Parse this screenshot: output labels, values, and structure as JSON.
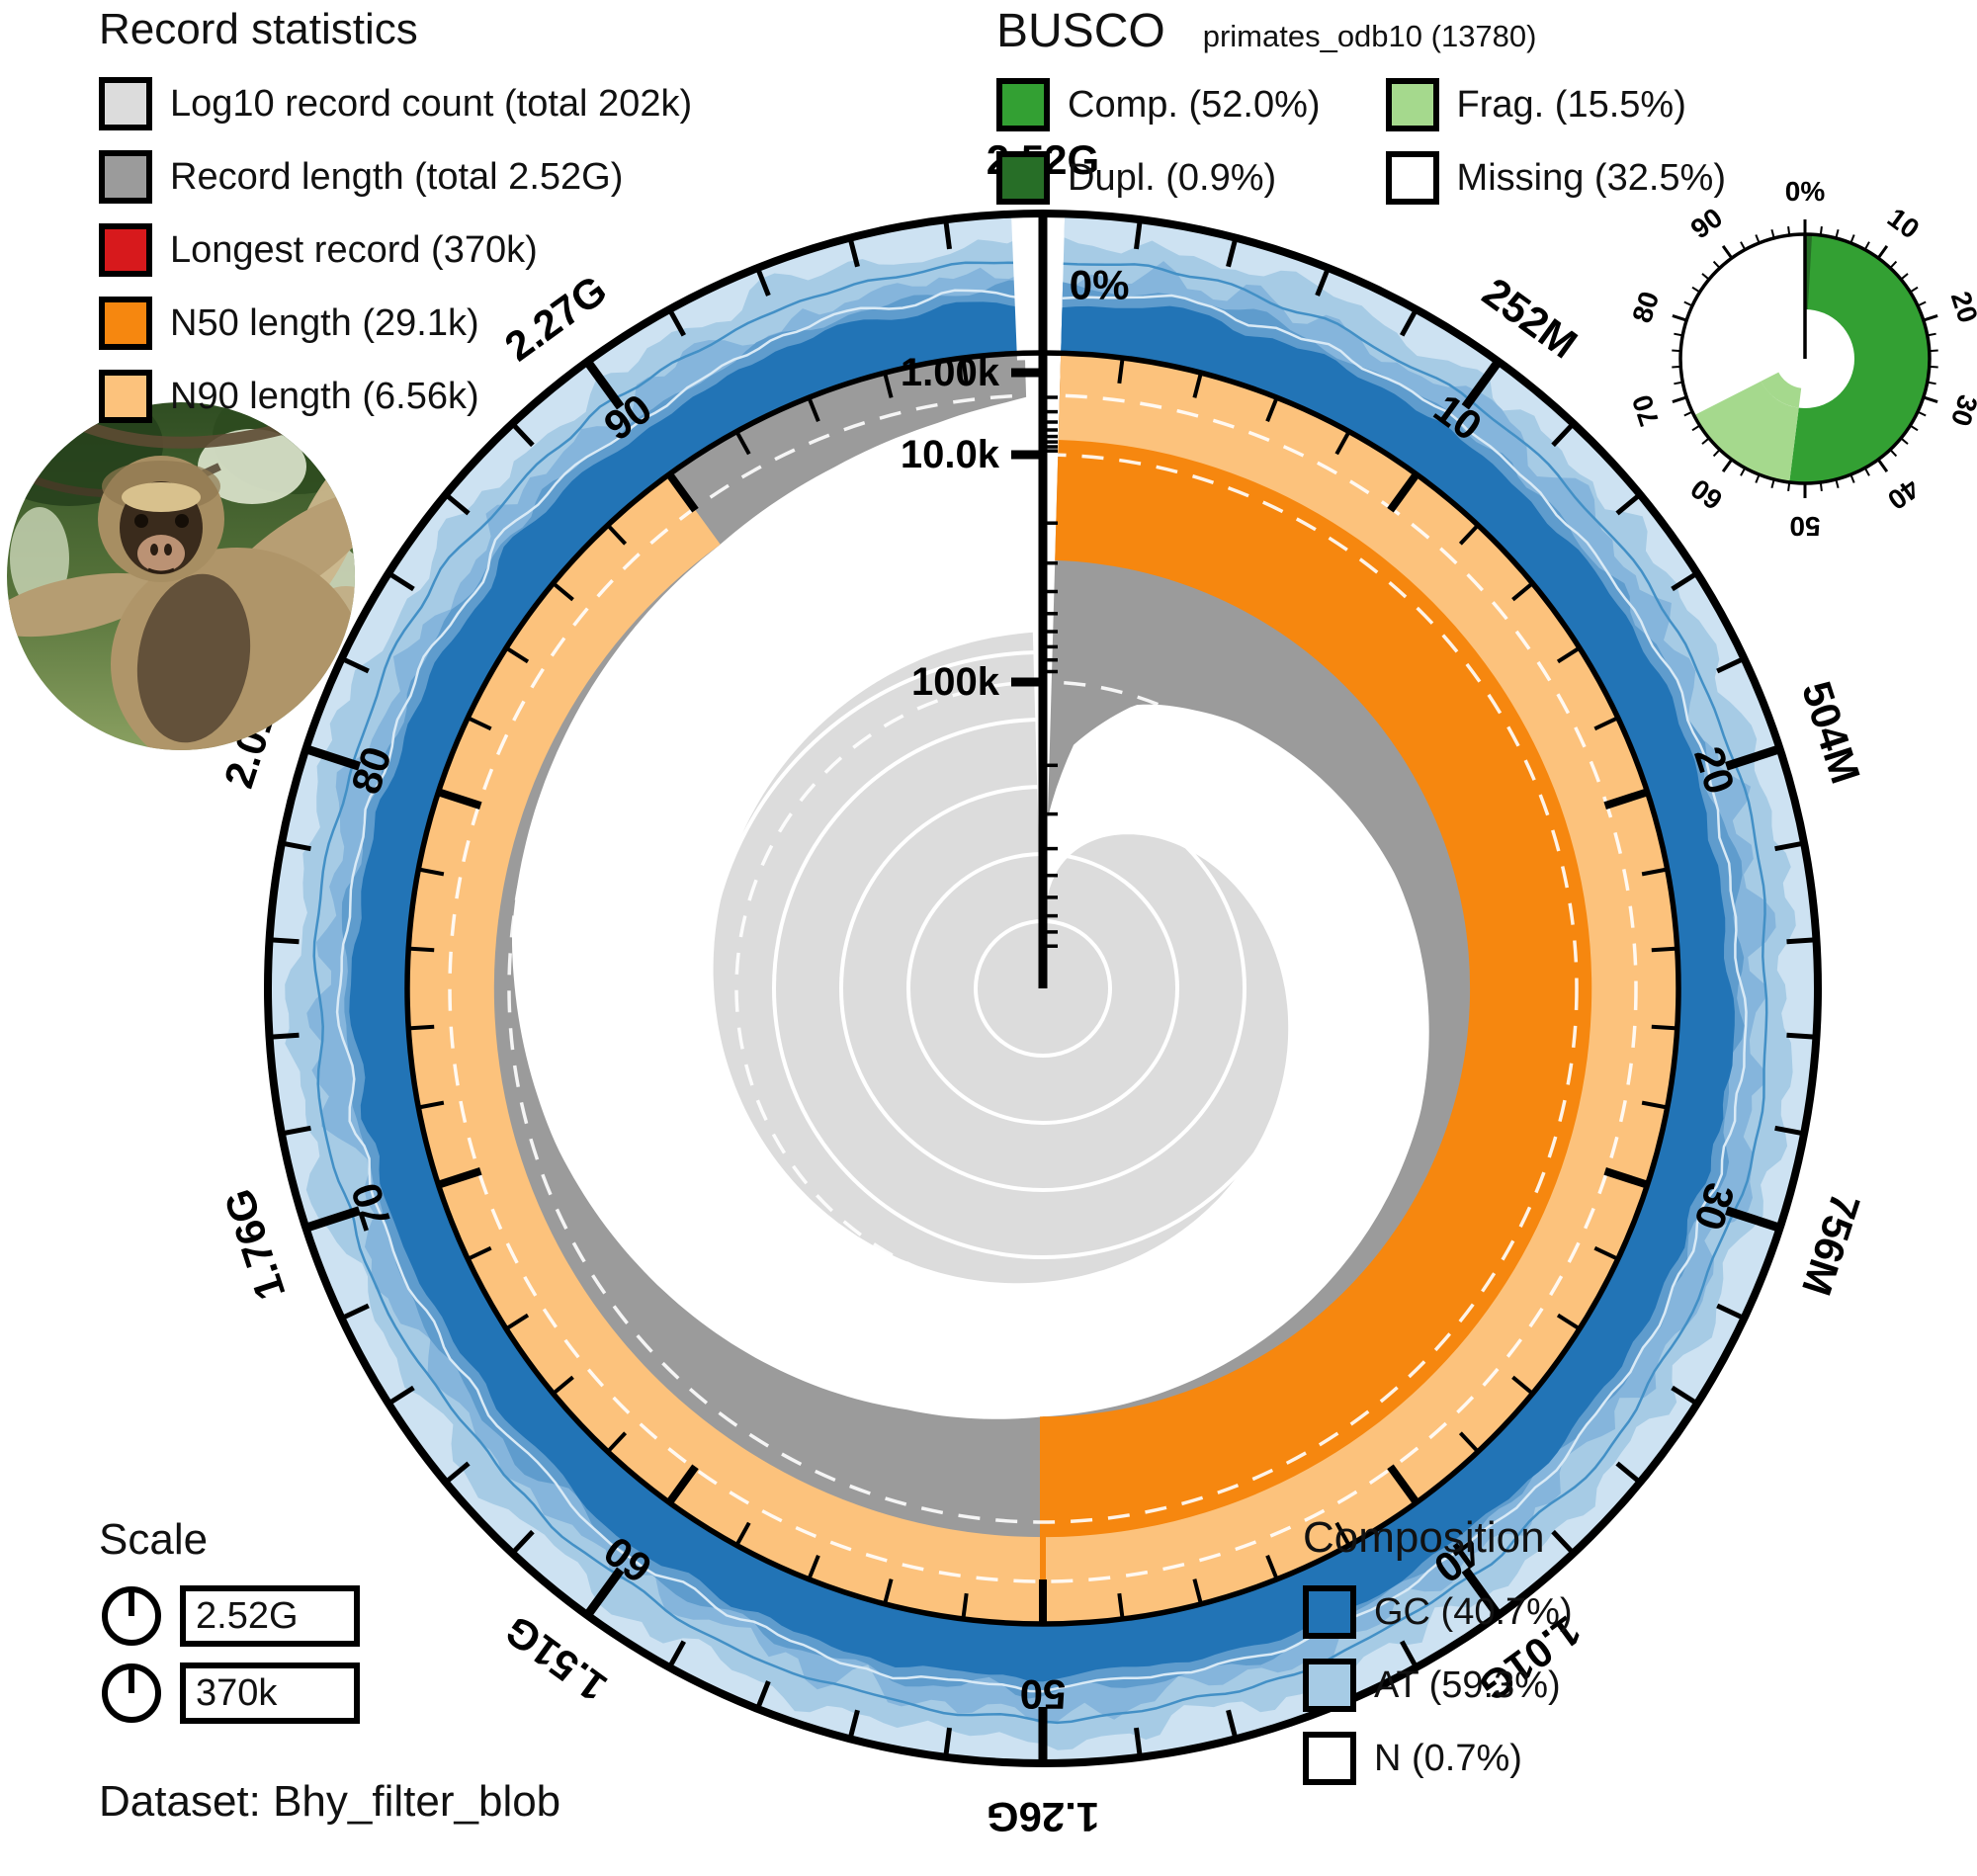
{
  "record_statistics": {
    "title": "Record statistics",
    "items": [
      {
        "name": "log10-record-count",
        "label": "Log10 record count (total 202k)",
        "color": "#dcdcdc"
      },
      {
        "name": "record-length",
        "label": "Record length (total 2.52G)",
        "color": "#9b9b9b"
      },
      {
        "name": "longest-record",
        "label": "Longest record (370k)",
        "color": "#d7191c"
      },
      {
        "name": "n50-length",
        "label": "N50 length (29.1k)",
        "color": "#f6870f"
      },
      {
        "name": "n90-length",
        "label": "N90 length (6.56k)",
        "color": "#fcc27c"
      }
    ]
  },
  "busco_legend": {
    "title": "BUSCO",
    "subtitle": "primates_odb10 (13780)",
    "col1": [
      {
        "name": "busco-complete",
        "label": "Comp. (52.0%)",
        "color": "#33a033"
      },
      {
        "name": "busco-duplicated",
        "label": "Dupl. (0.9%)",
        "color": "#276e27"
      }
    ],
    "col2": [
      {
        "name": "busco-fragmented",
        "label": "Frag. (15.5%)",
        "color": "#a5d98d"
      },
      {
        "name": "busco-missing",
        "label": "Missing (32.5%)",
        "color": "#ffffff"
      }
    ]
  },
  "composition_legend": {
    "title": "Composition",
    "items": [
      {
        "name": "gc",
        "label": "GC (40.7%)",
        "color": "#2274b6"
      },
      {
        "name": "at",
        "label": "AT (59.3%)",
        "color": "#a6cbe5"
      },
      {
        "name": "n",
        "label": "N (0.7%)",
        "color": "#ffffff"
      }
    ]
  },
  "scale_panel": {
    "title": "Scale",
    "total_length_label": "2.52G",
    "longest_record_label": "370k"
  },
  "dataset": {
    "label": "Dataset: Bhy_filter_blob"
  },
  "specimen_photo": {
    "alt": "muriqui monkey in forest canopy"
  },
  "chart_data": {
    "type": "snail",
    "dataset": "Bhy_filter_blob",
    "assembly": {
      "record_count_total": 202000,
      "record_count_label": "202k",
      "total_length": 2520000000,
      "total_length_label": "2.52G",
      "longest_record": 370000,
      "longest_record_label": "370k",
      "n50": 29100,
      "n50_label": "29.1k",
      "n90": 6560,
      "n90_label": "6.56k"
    },
    "composition": {
      "gc_pct": 40.7,
      "at_pct": 59.3,
      "n_pct": 0.7
    },
    "busco": {
      "lineage": "primates_odb10",
      "total": 13780,
      "complete_pct": 52.0,
      "duplicated_pct": 0.9,
      "fragmented_pct": 15.5,
      "missing_pct": 32.5,
      "tick_labels": [
        "0%",
        "10",
        "20",
        "30",
        "40",
        "50",
        "60",
        "70",
        "80",
        "90"
      ]
    },
    "scale_ring": {
      "outer_labels": [
        "2.52G",
        "252M",
        "504M",
        "756M",
        "1.01G",
        "1.26G",
        "1.51G",
        "1.76G",
        "2.01G",
        "2.27G"
      ],
      "pct_labels": [
        "0%",
        "10",
        "20",
        "30",
        "40",
        "50",
        "60",
        "70",
        "80",
        "90"
      ],
      "radial_axis_labels": [
        {
          "label": "1.00k",
          "length": 1000
        },
        {
          "label": "10.0k",
          "length": 10000
        },
        {
          "label": "100k",
          "length": 100000
        }
      ]
    },
    "length_profile_log10_vs_pct": [
      [
        0,
        5.568
      ],
      [
        0.02,
        5.22
      ],
      [
        0.05,
        5.03
      ],
      [
        0.1,
        4.9
      ],
      [
        0.2,
        4.72
      ],
      [
        0.3,
        4.6
      ],
      [
        0.4,
        4.53
      ],
      [
        0.5,
        4.464
      ],
      [
        0.55,
        4.4
      ],
      [
        0.6,
        4.3
      ],
      [
        0.7,
        4.1
      ],
      [
        0.8,
        3.95
      ],
      [
        0.9,
        3.817
      ],
      [
        0.94,
        3.66
      ],
      [
        0.97,
        3.5
      ],
      [
        0.99,
        3.35
      ],
      [
        1,
        3.25
      ]
    ],
    "colors": {
      "at_light_blue": "#a6cbe5",
      "at_pale": "#cde2f2",
      "blue_mid1": "#85b5dc",
      "blue_mid2": "#5f9ccd",
      "blue_line": "#4390c6",
      "pale_line": "#d9eaf6",
      "gc_dark_blue": "#2274b6",
      "n50_orange": "#f6870f",
      "n90_orange": "#fcc27c",
      "longest_red": "#d7191c",
      "record_gray": "#9b9b9b",
      "count_gray": "#dcdcdc",
      "busco_comp_green": "#33a033",
      "busco_dupl_green": "#276e27",
      "busco_frag_green": "#a5d98d",
      "ink": "#000000",
      "white": "#ffffff"
    }
  }
}
